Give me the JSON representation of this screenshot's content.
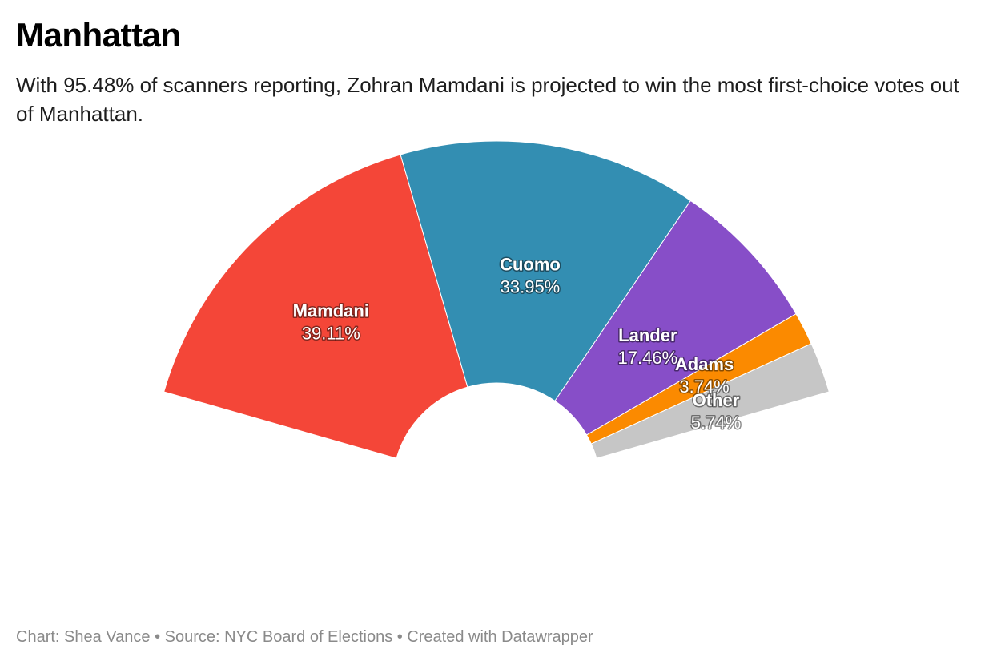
{
  "header": {
    "title": "Manhattan",
    "subtitle": "With 95.48% of scanners reporting, Zohran Mamdani is projected to win the most first-choice votes out of Manhattan."
  },
  "footer": {
    "text": "Chart: Shea Vance • Source: NYC Board of Elections • Created with Datawrapper"
  },
  "chart_data": {
    "type": "pie",
    "variant": "semi-donut",
    "title": "Manhattan",
    "slices": [
      {
        "label": "Mamdani",
        "value": 39.11,
        "display": "39.11%",
        "color": "#f44638"
      },
      {
        "label": "Cuomo",
        "value": 33.95,
        "display": "33.95%",
        "color": "#338eb2"
      },
      {
        "label": "Lander",
        "value": 17.46,
        "display": "17.46%",
        "color": "#874ec8"
      },
      {
        "label": "Adams",
        "value": 3.74,
        "display": "3.74%",
        "color": "#fb8a00"
      },
      {
        "label": "Other",
        "value": 5.74,
        "display": "5.74%",
        "color": "#c6c6c6"
      }
    ]
  }
}
